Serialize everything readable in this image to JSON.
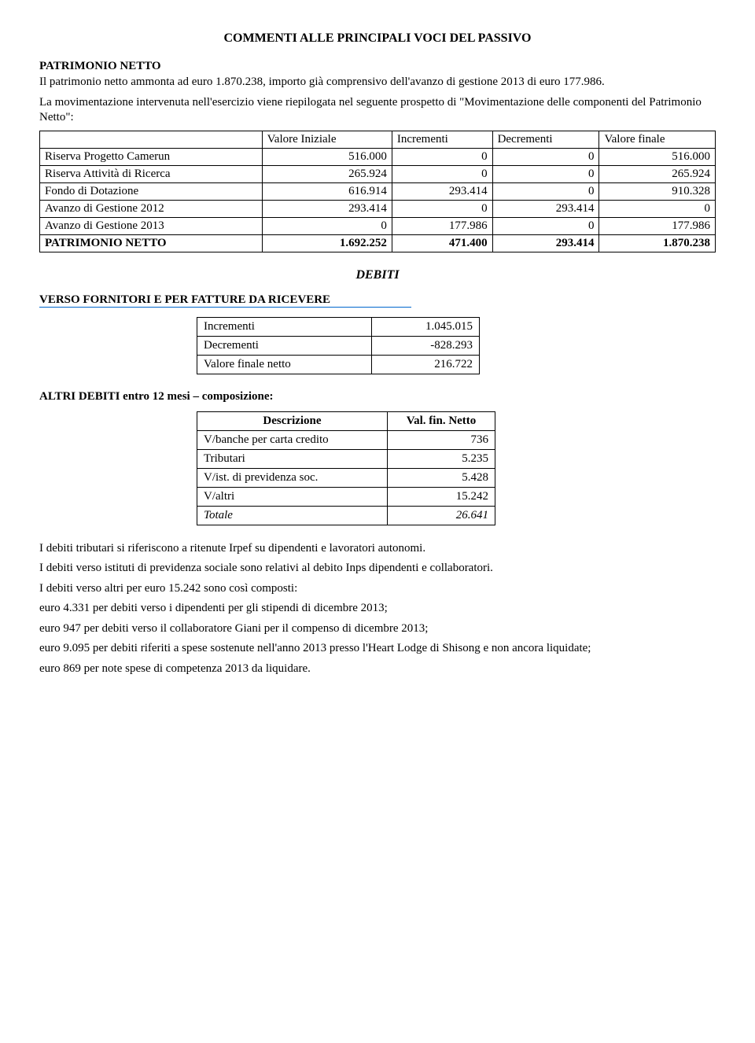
{
  "title": "COMMENTI ALLE PRINCIPALI VOCI DEL PASSIVO",
  "patrimonio": {
    "header": "PATRIMONIO NETTO",
    "intro": "Il patrimonio netto ammonta ad euro 1.870.238, importo già comprensivo dell'avanzo di gestione 2013 di euro 177.986.",
    "intro2": "La movimentazione intervenuta nell'esercizio viene riepilogata nel seguente prospetto di \"Movimentazione delle componenti del Patrimonio Netto\":"
  },
  "mov_table": {
    "headers": [
      "",
      "Valore Iniziale",
      "Incrementi",
      "Decrementi",
      "Valore finale"
    ],
    "rows": [
      {
        "label": "Riserva Progetto Camerun",
        "vals": [
          "516.000",
          "0",
          "0",
          "516.000"
        ]
      },
      {
        "label": "Riserva Attività di Ricerca",
        "vals": [
          "265.924",
          "0",
          "0",
          "265.924"
        ]
      },
      {
        "label": "Fondo di Dotazione",
        "vals": [
          "616.914",
          "293.414",
          "0",
          "910.328"
        ]
      },
      {
        "label": "Avanzo di Gestione 2012",
        "vals": [
          "293.414",
          "0",
          "293.414",
          "0"
        ]
      },
      {
        "label": "Avanzo di Gestione 2013",
        "vals": [
          "0",
          "177.986",
          "0",
          "177.986"
        ]
      }
    ],
    "total": {
      "label": "PATRIMONIO NETTO",
      "vals": [
        "1.692.252",
        "471.400",
        "293.414",
        "1.870.238"
      ]
    }
  },
  "debiti_title": "DEBITI",
  "fornitori_header": "VERSO FORNITORI E PER FATTURE DA RICEVERE",
  "fornitori_rows": [
    {
      "label": "Incrementi",
      "val": "1.045.015"
    },
    {
      "label": "Decrementi",
      "val": "-828.293"
    },
    {
      "label": "Valore finale netto",
      "val": "216.722"
    }
  ],
  "altri_header": "ALTRI DEBITI entro 12 mesi – composizione:",
  "altri_table": {
    "col_headers": [
      "Descrizione",
      "Val. fin. Netto"
    ],
    "rows": [
      {
        "label": "V/banche per carta credito",
        "val": "736"
      },
      {
        "label": "Tributari",
        "val": "5.235"
      },
      {
        "label": "V/ist. di previdenza soc.",
        "val": "5.428"
      },
      {
        "label": "V/altri",
        "val": "15.242"
      }
    ],
    "total": {
      "label": "Totale",
      "val": "26.641"
    }
  },
  "body_paragraphs": [
    "I debiti tributari si riferiscono a ritenute Irpef su dipendenti e lavoratori autonomi.",
    "I debiti verso istituti di previdenza sociale sono relativi al debito Inps dipendenti e collaboratori.",
    "I debiti verso altri per euro 15.242 sono così composti:",
    "euro 4.331 per debiti verso i dipendenti per gli stipendi di dicembre 2013;",
    "euro 947 per debiti verso il collaboratore Giani per il compenso di dicembre 2013;",
    "euro 9.095 per debiti riferiti a spese sostenute nell'anno 2013 presso l'Heart Lodge di Shisong e non ancora liquidate;",
    "euro 869 per note spese di competenza 2013 da liquidare."
  ]
}
